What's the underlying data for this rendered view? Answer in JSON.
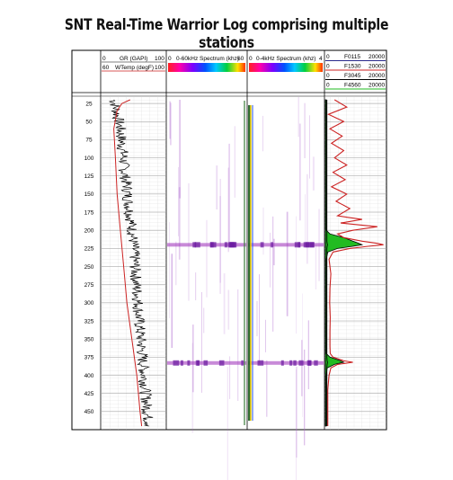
{
  "title": "SNT Real-Time Warrior Log comprising multiple stations",
  "header": {
    "gr": {
      "min": "0",
      "label": "GR (GAPI)",
      "max": "100",
      "color": "#000000"
    },
    "wtemp": {
      "min": "60",
      "label": "WTemp (degF)",
      "max": "100",
      "color": "#cc2222"
    },
    "spec60": {
      "min": "0",
      "label": "0-60kHz Spectrum (khz)",
      "max": "60"
    },
    "spec4": {
      "min": "0",
      "label": "0-4kHz Spectrum (khz)",
      "max": "4"
    },
    "stations": [
      {
        "min": "0",
        "label": "F0115",
        "max": "20000",
        "color": "#2a2a8c"
      },
      {
        "min": "0",
        "label": "F1530",
        "max": "20000",
        "color": "#cc2222"
      },
      {
        "min": "0",
        "label": "F3045",
        "max": "20000",
        "color": "#000000"
      },
      {
        "min": "0",
        "label": "F4560",
        "max": "20000",
        "color": "#22bb22"
      }
    ]
  },
  "chart_data": {
    "type": "line",
    "depth_ticks": [
      "25",
      "50",
      "75",
      "100",
      "125",
      "150",
      "175",
      "200",
      "225",
      "250",
      "275",
      "300",
      "325",
      "350",
      "375",
      "400",
      "425",
      "450"
    ],
    "ylim": [
      15,
      475
    ],
    "gr": {
      "xlim": [
        0,
        100
      ],
      "depth": [
        20,
        40,
        60,
        80,
        100,
        120,
        140,
        160,
        180,
        200,
        220,
        240,
        260,
        280,
        300,
        320,
        340,
        360,
        380,
        400,
        420,
        440,
        460,
        470
      ],
      "values": [
        20,
        25,
        30,
        32,
        35,
        36,
        40,
        42,
        45,
        48,
        50,
        52,
        53,
        55,
        57,
        58,
        60,
        62,
        64,
        66,
        68,
        70,
        72,
        75
      ]
    },
    "wtemp": {
      "xlim": [
        60,
        100
      ],
      "depth": [
        20,
        25,
        35,
        60,
        100,
        150,
        200,
        250,
        300,
        350,
        400,
        450,
        470
      ],
      "values": [
        78,
        73,
        70,
        68,
        69,
        70,
        72,
        74,
        76,
        79,
        82,
        84,
        85
      ]
    },
    "stations": {
      "xlim": [
        0,
        20000
      ],
      "depth": [
        20,
        30,
        40,
        50,
        60,
        70,
        80,
        90,
        100,
        110,
        120,
        130,
        140,
        150,
        160,
        170,
        180,
        185,
        190,
        195,
        200,
        205,
        210,
        215,
        218,
        220,
        222,
        225,
        230,
        240,
        260,
        280,
        300,
        320,
        340,
        360,
        370,
        375,
        380,
        382,
        385,
        390,
        400,
        420,
        440,
        460,
        470
      ],
      "F1530": [
        3000,
        7000,
        1000,
        6000,
        1500,
        5500,
        2000,
        6000,
        3000,
        7000,
        2500,
        6500,
        2000,
        7000,
        3500,
        8000,
        4000,
        12000,
        5000,
        17000,
        9000,
        4000,
        6000,
        12000,
        17000,
        19000,
        14000,
        8000,
        2500,
        1200,
        1800,
        1500,
        1400,
        1600,
        1500,
        1500,
        1600,
        2500,
        6000,
        9000,
        4000,
        1800,
        1200,
        800,
        800,
        800,
        800
      ],
      "F4560": [
        300,
        300,
        300,
        300,
        300,
        300,
        300,
        300,
        300,
        300,
        300,
        300,
        300,
        300,
        300,
        300,
        300,
        300,
        300,
        300,
        300,
        1500,
        6000,
        9000,
        11000,
        12000,
        9000,
        4000,
        800,
        300,
        300,
        300,
        300,
        300,
        300,
        300,
        300,
        1500,
        5000,
        6000,
        3000,
        600,
        300,
        300,
        300,
        300,
        300
      ],
      "F0115": [
        500,
        500,
        500,
        500,
        500,
        500,
        500,
        500,
        500,
        500,
        500,
        500,
        500,
        500,
        500,
        500,
        500,
        500,
        500,
        500,
        500,
        500,
        500,
        500,
        600,
        700,
        600,
        500,
        500,
        500,
        500,
        500,
        500,
        500,
        500,
        500,
        500,
        500,
        600,
        700,
        600,
        500,
        500,
        500,
        500,
        500,
        500
      ]
    },
    "spectrum_bands_depth": [
      220,
      383
    ]
  }
}
